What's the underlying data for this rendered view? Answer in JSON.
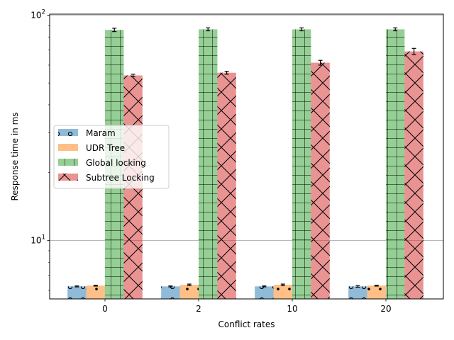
{
  "chart_data": {
    "type": "bar",
    "title": "",
    "xlabel": "Conflict rates",
    "ylabel": "Response time in ms",
    "yscale": "log",
    "ylim": [
      5.5,
      101
    ],
    "categories": [
      "0",
      "2",
      "10",
      "20"
    ],
    "y_ticks": [
      {
        "value": 10,
        "label": "10^1"
      },
      {
        "value": 100,
        "label": "10^2"
      }
    ],
    "grid": {
      "y_major": true,
      "x": false
    },
    "legend_position": "center-left",
    "series": [
      {
        "name": "Maram",
        "color": "#1f77b4",
        "hatch": "circles",
        "values": [
          6.25,
          6.25,
          6.25,
          6.25
        ],
        "errors": [
          0.03,
          0.03,
          0.03,
          0.05
        ]
      },
      {
        "name": "UDR Tree",
        "color": "#ff7f0e",
        "hatch": "dots",
        "values": [
          6.3,
          6.35,
          6.35,
          6.3
        ],
        "errors": [
          0.03,
          0.05,
          0.05,
          0.03
        ]
      },
      {
        "name": "Global locking",
        "color": "#2ca02c",
        "hatch": "grid",
        "values": [
          86,
          86.5,
          86.5,
          86.5
        ],
        "errors": [
          1.5,
          1.3,
          1.3,
          1.3
        ]
      },
      {
        "name": "Subtree Locking",
        "color": "#d62728",
        "hatch": "crosshatch",
        "values": [
          54,
          55.5,
          61.5,
          69
        ],
        "errors": [
          0.7,
          0.8,
          1.5,
          2.2
        ]
      }
    ]
  }
}
